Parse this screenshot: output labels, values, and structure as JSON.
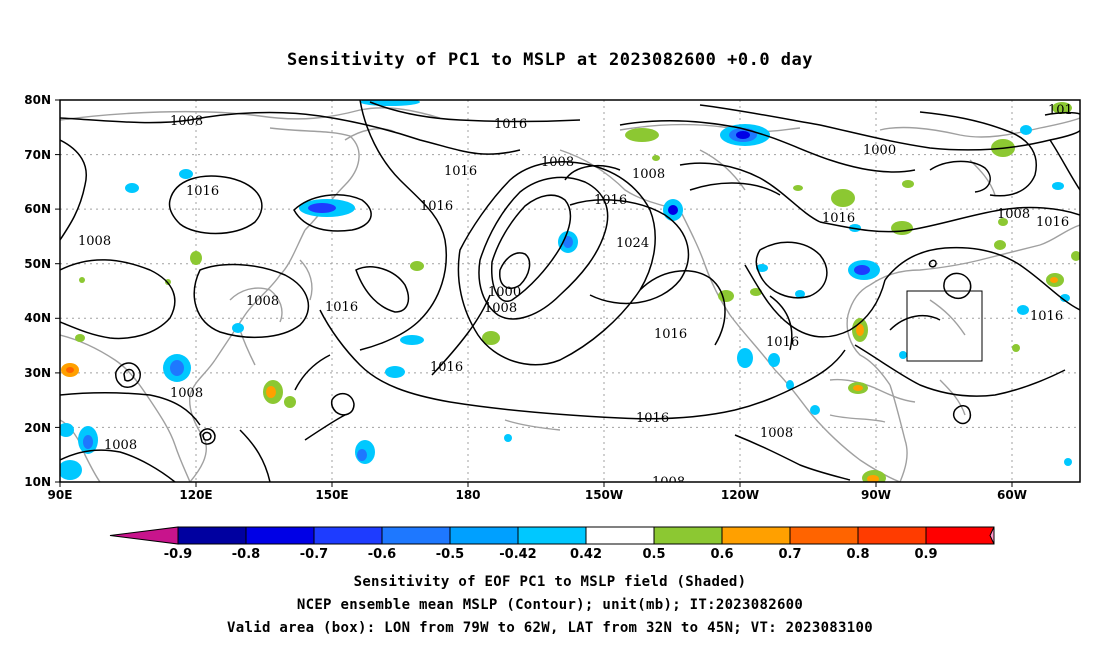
{
  "title": "Sensitivity of PC1 to MSLP at 2023082600 +0.0 day",
  "lat_labels": [
    "80N",
    "70N",
    "60N",
    "50N",
    "40N",
    "30N",
    "20N",
    "10N"
  ],
  "lon_labels": [
    "90E",
    "120E",
    "150E",
    "180",
    "150W",
    "120W",
    "90W",
    "60W"
  ],
  "contour_labels": {
    "l1008_a": "1008",
    "l1016_a": "1016",
    "l1008_b": "1008",
    "l1016_b": "1016",
    "l1016_c": "1016",
    "l1008_c": "1008",
    "l1008_d": "1008",
    "l1016_d": "1016",
    "l1024": "1024",
    "l1000_a": "1000",
    "l1008_e": "1008",
    "l1016_e": "1016",
    "l1016_f": "1016",
    "l1016_g": "1016",
    "l1016_h": "1016",
    "l1008_f": "1008",
    "l1008_g": "1008",
    "l1000_b": "1000",
    "l1016_i": "1016",
    "l1008_h": "1008",
    "l1016_j": "1016",
    "l1008_i": "1008",
    "l1008_j": "1008",
    "l1016_k": "1016",
    "l101": "101",
    "l1008_k": "1008"
  },
  "colorbar": {
    "labels": [
      "-0.9",
      "-0.8",
      "-0.7",
      "-0.6",
      "-0.5",
      "-0.42",
      "0.42",
      "0.5",
      "0.6",
      "0.7",
      "0.8",
      "0.9"
    ],
    "colors": {
      "below": "#c8148c",
      "bins": [
        "#0000a0",
        "#0000e6",
        "#1e3cff",
        "#1e78ff",
        "#00a0ff",
        "#00c8ff",
        "#ffffff",
        "#8cc832",
        "#ffa000",
        "#ff6400",
        "#ff3c00",
        "#ff0000"
      ],
      "above": "#ff96c8"
    }
  },
  "captions": {
    "line1": "Sensitivity of EOF PC1 to MSLP field (Shaded)",
    "line2": "NCEP ensemble mean MSLP (Contour); unit(mb); IT:2023082600",
    "line3": "Valid area (box): LON from 79W to 62W, LAT from 32N to 45N; VT: 2023083100"
  },
  "colors": {
    "land": "#a0a0a0",
    "contour": "#000000",
    "grid": "#a0a0a0"
  }
}
